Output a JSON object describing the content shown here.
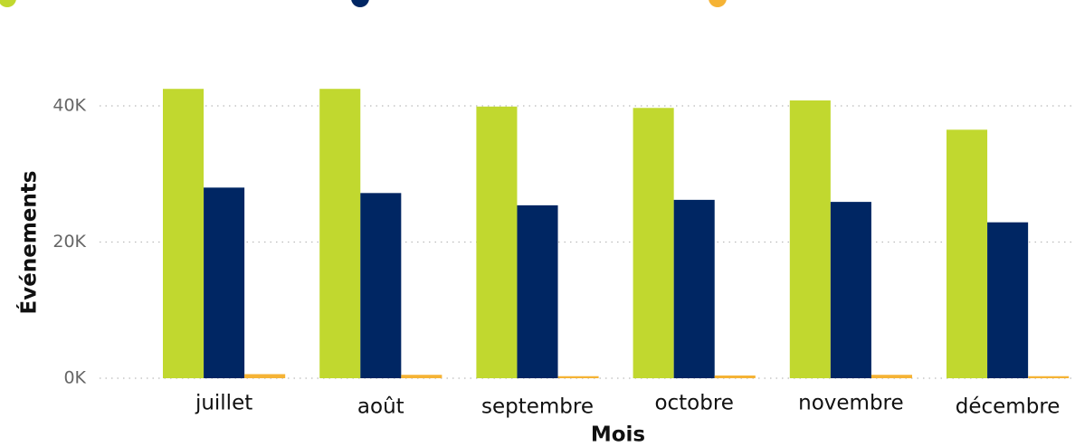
{
  "chart_data": {
    "type": "bar",
    "x_label": "Mois",
    "y_label": "Événements",
    "categories": [
      "juillet",
      "août",
      "septembre",
      "octobre",
      "novembre",
      "décembre"
    ],
    "series": [
      {
        "color": "#c1d82f",
        "values": [
          42500,
          42500,
          39900,
          39700,
          40800,
          36500
        ]
      },
      {
        "color": "#002663",
        "values": [
          28000,
          27200,
          25400,
          26200,
          25900,
          22900
        ]
      },
      {
        "color": "#f5b335",
        "values": [
          600,
          500,
          300,
          400,
          500,
          300
        ]
      }
    ],
    "ylim": [
      0,
      45000
    ],
    "yticks": [
      {
        "value": 0,
        "label": "0K"
      },
      {
        "value": 20000,
        "label": "20K"
      },
      {
        "value": 40000,
        "label": "40K"
      }
    ],
    "grid": true
  }
}
